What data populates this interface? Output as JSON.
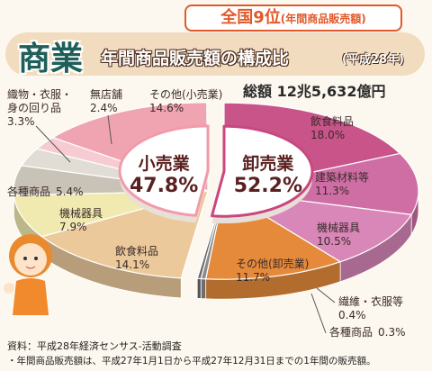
{
  "header": {
    "rank": "全国9位",
    "rank_note": "(年間商品販売額)",
    "sector": "商業"
  },
  "chart_data": {
    "type": "pie",
    "title": "年間商品販売額の構成比",
    "subtitle": "(平成28年)",
    "total": "総額 12兆5,632億円",
    "categories": [
      "小売業",
      "卸売業"
    ],
    "values": [
      47.8,
      52.2
    ],
    "value_labels": [
      "47.8%",
      "52.2%"
    ],
    "colors": [
      "#f29aa9",
      "#c8477e"
    ],
    "breakdown": [
      {
        "categories": [
          "飲食料品",
          "機械器具",
          "各種商品",
          "織物・衣服・身の回り品",
          "無店舗",
          "その他(小売業)"
        ],
        "values": [
          14.1,
          7.9,
          5.4,
          3.3,
          2.4,
          14.6
        ],
        "value_labels": [
          "14.1%",
          "7.9%",
          "5.4%",
          "3.3%",
          "2.4%",
          "14.6%"
        ],
        "colors": [
          "#ebc99b",
          "#f1eab0",
          "#c9c2b6",
          "#e2ddd4",
          "#f6ccd2",
          "#f0a4b2"
        ]
      },
      {
        "categories": [
          "飲食料品",
          "建築材料等",
          "機械器具",
          "その他(卸売業)",
          "繊維・衣服等",
          "各種商品"
        ],
        "values": [
          18.0,
          11.3,
          10.5,
          11.7,
          0.4,
          0.3
        ],
        "value_labels": [
          "18.0%",
          "11.3%",
          "10.5%",
          "11.7%",
          "0.4%",
          "0.3%"
        ],
        "colors": [
          "#c8548a",
          "#cf6ea4",
          "#d887b8",
          "#e48a3a",
          "#8c8c8c",
          "#6c6c6c"
        ]
      }
    ]
  },
  "notes": [
    "資料：平成28年経済センサス-活動調査",
    "・年間商品販売額は、平成27年1月1日から平成27年12月31日までの1年間の販売額。"
  ]
}
